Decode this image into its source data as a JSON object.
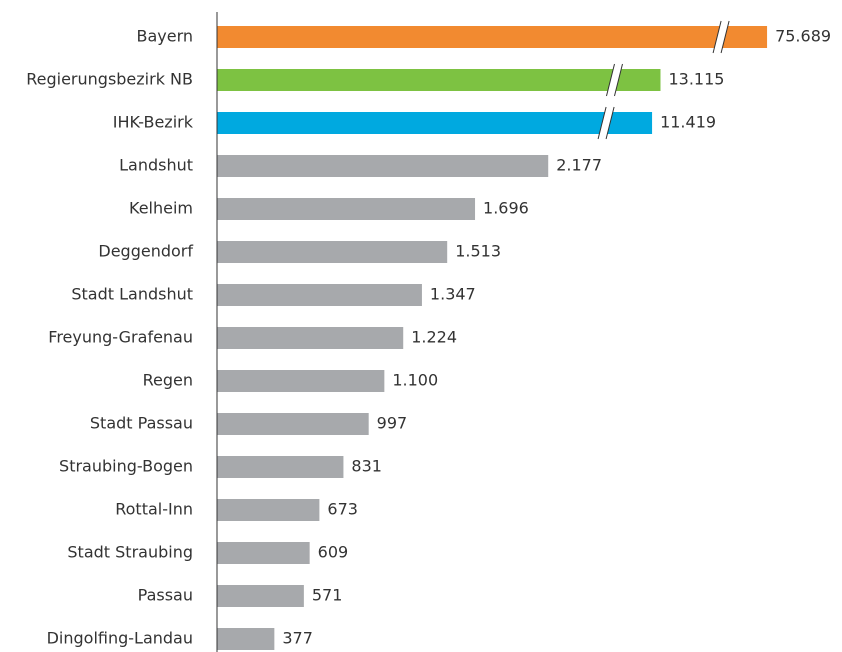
{
  "chart_data": {
    "type": "bar",
    "orientation": "horizontal",
    "categories": [
      "Bayern",
      "Regierungsbezirk NB",
      "IHK-Bezirk",
      "Landshut",
      "Kelheim",
      "Deggendorf",
      "Stadt Landshut",
      "Freyung-Grafenau",
      "Regen",
      "Stadt Passau",
      "Straubing-Bogen",
      "Rottal-Inn",
      "Stadt Straubing",
      "Passau",
      "Dingolfing-Landau"
    ],
    "values": [
      75689,
      13115,
      11419,
      2177,
      1696,
      1513,
      1347,
      1224,
      1100,
      997,
      831,
      673,
      609,
      571,
      377
    ],
    "value_labels": [
      "75.689",
      "13.115",
      "11.419",
      "2.177",
      "1.696",
      "1.513",
      "1.347",
      "1.224",
      "1.100",
      "997",
      "831",
      "673",
      "609",
      "571",
      "377"
    ],
    "colors": [
      "#f28a30",
      "#7dc242",
      "#00a9e0",
      "#a7a9ac",
      "#a7a9ac",
      "#a7a9ac",
      "#a7a9ac",
      "#a7a9ac",
      "#a7a9ac",
      "#a7a9ac",
      "#a7a9ac",
      "#a7a9ac",
      "#a7a9ac",
      "#a7a9ac",
      "#a7a9ac"
    ],
    "xlim": [
      0,
      2800
    ],
    "axis_break": true
  }
}
